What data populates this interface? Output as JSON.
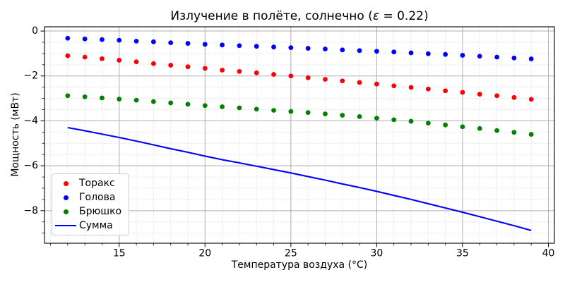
{
  "figure": {
    "title_prefix": "Излучение в полёте, солнечно (",
    "title_epsilon": "ε",
    "title_suffix": " = 0.22)"
  },
  "chart_data": {
    "type": "scatter",
    "title": "Излучение в полёте, солнечно (ε = 0.22)",
    "xlabel": "Температура воздуха (°C)",
    "ylabel": "Мощность (мВт)",
    "xlim": [
      10.65,
      40.35
    ],
    "ylim": [
      -9.45,
      0.19
    ],
    "xticks": [
      15,
      20,
      25,
      30,
      35,
      40
    ],
    "xtick_labels": [
      "15",
      "20",
      "25",
      "30",
      "35",
      "40"
    ],
    "yticks": [
      0,
      -2,
      -4,
      -6,
      -8
    ],
    "ytick_labels": [
      "0",
      "−2",
      "−4",
      "−6",
      "−8"
    ],
    "x_minor_step": 1,
    "y_minor_step": 0.5,
    "grid": {
      "major": true,
      "minor": true
    },
    "legend_position": "lower left",
    "x": [
      12,
      13,
      14,
      15,
      16,
      17,
      18,
      19,
      20,
      21,
      22,
      23,
      24,
      25,
      26,
      27,
      28,
      29,
      30,
      31,
      32,
      33,
      34,
      35,
      36,
      37,
      38,
      39
    ],
    "series": [
      {
        "key": "thorax",
        "name": "Торакс",
        "type": "scatter",
        "color": "#ff0000",
        "values": [
          -1.1,
          -1.16,
          -1.23,
          -1.3,
          -1.37,
          -1.45,
          -1.52,
          -1.59,
          -1.66,
          -1.74,
          -1.8,
          -1.86,
          -1.93,
          -2.0,
          -2.08,
          -2.15,
          -2.22,
          -2.29,
          -2.36,
          -2.44,
          -2.51,
          -2.58,
          -2.66,
          -2.73,
          -2.81,
          -2.88,
          -2.96,
          -3.04
        ]
      },
      {
        "key": "head",
        "name": "Голова",
        "type": "scatter",
        "color": "#0000ff",
        "values": [
          -0.32,
          -0.35,
          -0.38,
          -0.41,
          -0.45,
          -0.48,
          -0.52,
          -0.55,
          -0.59,
          -0.62,
          -0.65,
          -0.68,
          -0.71,
          -0.74,
          -0.77,
          -0.8,
          -0.84,
          -0.87,
          -0.9,
          -0.93,
          -0.97,
          -1.01,
          -1.04,
          -1.08,
          -1.12,
          -1.16,
          -1.2,
          -1.24
        ]
      },
      {
        "key": "abdomen",
        "name": "Брюшко",
        "type": "scatter",
        "color": "#008000",
        "values": [
          -2.88,
          -2.93,
          -2.98,
          -3.03,
          -3.08,
          -3.14,
          -3.2,
          -3.26,
          -3.32,
          -3.37,
          -3.42,
          -3.48,
          -3.53,
          -3.58,
          -3.63,
          -3.69,
          -3.75,
          -3.81,
          -3.88,
          -3.95,
          -4.02,
          -4.1,
          -4.18,
          -4.26,
          -4.34,
          -4.43,
          -4.51,
          -4.6
        ]
      },
      {
        "key": "sum",
        "name": "Сумма",
        "type": "line",
        "color": "#0000ff",
        "values": [
          -4.3,
          -4.44,
          -4.59,
          -4.74,
          -4.9,
          -5.07,
          -5.24,
          -5.4,
          -5.57,
          -5.73,
          -5.87,
          -6.02,
          -6.17,
          -6.32,
          -6.48,
          -6.64,
          -6.81,
          -6.97,
          -7.14,
          -7.32,
          -7.5,
          -7.69,
          -7.88,
          -8.07,
          -8.27,
          -8.47,
          -8.67,
          -8.88
        ]
      }
    ]
  }
}
